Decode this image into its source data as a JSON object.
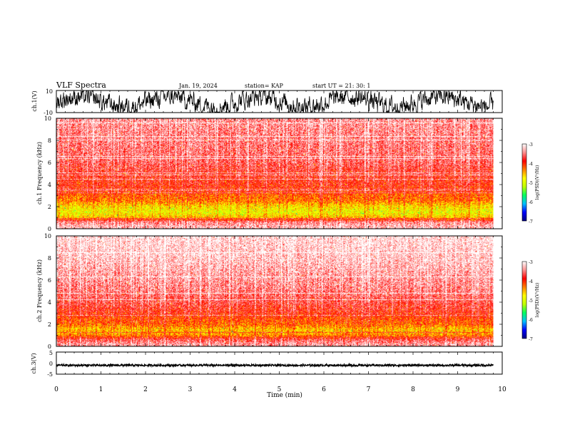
{
  "header": {
    "title": "VLF Spectra",
    "date": "Jan. 19, 2024",
    "station": "station= KAP",
    "start_ut": "start  UT  =   21: 30: 1"
  },
  "chart_data": [
    {
      "type": "line",
      "panel": "ch1-waveform",
      "ylabel": "ch.1(V)",
      "ylim": [
        -10,
        10
      ],
      "yticks": [
        "10",
        "-10"
      ],
      "xlim": [
        0,
        10
      ],
      "data_extent_min": [
        0,
        9.8
      ],
      "description_of_series": "dense noisy waveform fluctuating roughly between -9 and 9 V"
    },
    {
      "type": "heatmap",
      "panel": "ch1-spectrogram",
      "ylabel": "ch.1 Frequency (kHz)",
      "ylim": [
        0,
        10
      ],
      "yticks": [
        "0",
        "2",
        "4",
        "6",
        "8",
        "10"
      ],
      "xlim": [
        0,
        10
      ],
      "data_extent_min": [
        0,
        9.8
      ],
      "colorbar": {
        "label": "log(PSD)(V²/Hz)",
        "range": [
          -7,
          -3
        ],
        "ticks": [
          "-3",
          "-4",
          "-5",
          "-6",
          "-7"
        ]
      },
      "band_profile": [
        {
          "f": 0.2,
          "level": -3.3
        },
        {
          "f": 0.6,
          "level": -3.5
        },
        {
          "f": 1.0,
          "level": -4.6
        },
        {
          "f": 1.5,
          "level": -4.9
        },
        {
          "f": 2.0,
          "level": -4.7
        },
        {
          "f": 2.5,
          "level": -4.3
        },
        {
          "f": 3.0,
          "level": -4.2
        },
        {
          "f": 3.5,
          "level": -4.0
        },
        {
          "f": 4.0,
          "level": -3.9
        },
        {
          "f": 5.0,
          "level": -3.8
        },
        {
          "f": 6.0,
          "level": -3.6
        },
        {
          "f": 8.0,
          "level": -3.5
        },
        {
          "f": 10.0,
          "level": -3.4
        }
      ]
    },
    {
      "type": "heatmap",
      "panel": "ch2-spectrogram",
      "ylabel": "ch.2 Frequency (kHz)",
      "ylim": [
        0,
        10
      ],
      "yticks": [
        "0",
        "2",
        "4",
        "6",
        "8",
        "10"
      ],
      "xlim": [
        0,
        10
      ],
      "data_extent_min": [
        0,
        9.8
      ],
      "colorbar": {
        "label": "log(PSD)(V²/Hz)",
        "range": [
          -7,
          -3
        ],
        "ticks": [
          "-3",
          "-4",
          "-5",
          "-6",
          "-7"
        ]
      },
      "band_profile": [
        {
          "f": 0.2,
          "level": -3.4
        },
        {
          "f": 0.6,
          "level": -3.7
        },
        {
          "f": 1.0,
          "level": -4.4
        },
        {
          "f": 1.5,
          "level": -4.6
        },
        {
          "f": 2.0,
          "level": -4.2
        },
        {
          "f": 2.5,
          "level": -4.1
        },
        {
          "f": 3.0,
          "level": -3.9
        },
        {
          "f": 4.0,
          "level": -3.7
        },
        {
          "f": 5.0,
          "level": -3.5
        },
        {
          "f": 6.0,
          "level": -3.4
        },
        {
          "f": 8.0,
          "level": -3.2
        },
        {
          "f": 10.0,
          "level": -3.1
        }
      ]
    },
    {
      "type": "line",
      "panel": "ch3-waveform",
      "ylabel": "ch.3(V)",
      "ylim": [
        -5,
        5
      ],
      "yticks": [
        "5",
        "0",
        "-5"
      ],
      "xlim": [
        0,
        10
      ],
      "data_extent_min": [
        0,
        9.8
      ],
      "description_of_series": "nearly constant trace around -1 V with small fluctuations"
    }
  ],
  "xaxis": {
    "label": "Time (min)",
    "ticks": [
      "0",
      "1",
      "2",
      "3",
      "4",
      "5",
      "6",
      "7",
      "8",
      "9",
      "10"
    ]
  },
  "colors": {
    "colormap": [
      "#000080",
      "#0000ff",
      "#00c0ff",
      "#00ff60",
      "#c0ff00",
      "#ffff00",
      "#ff8000",
      "#ff0000",
      "#ff9090",
      "#ffffff"
    ]
  }
}
